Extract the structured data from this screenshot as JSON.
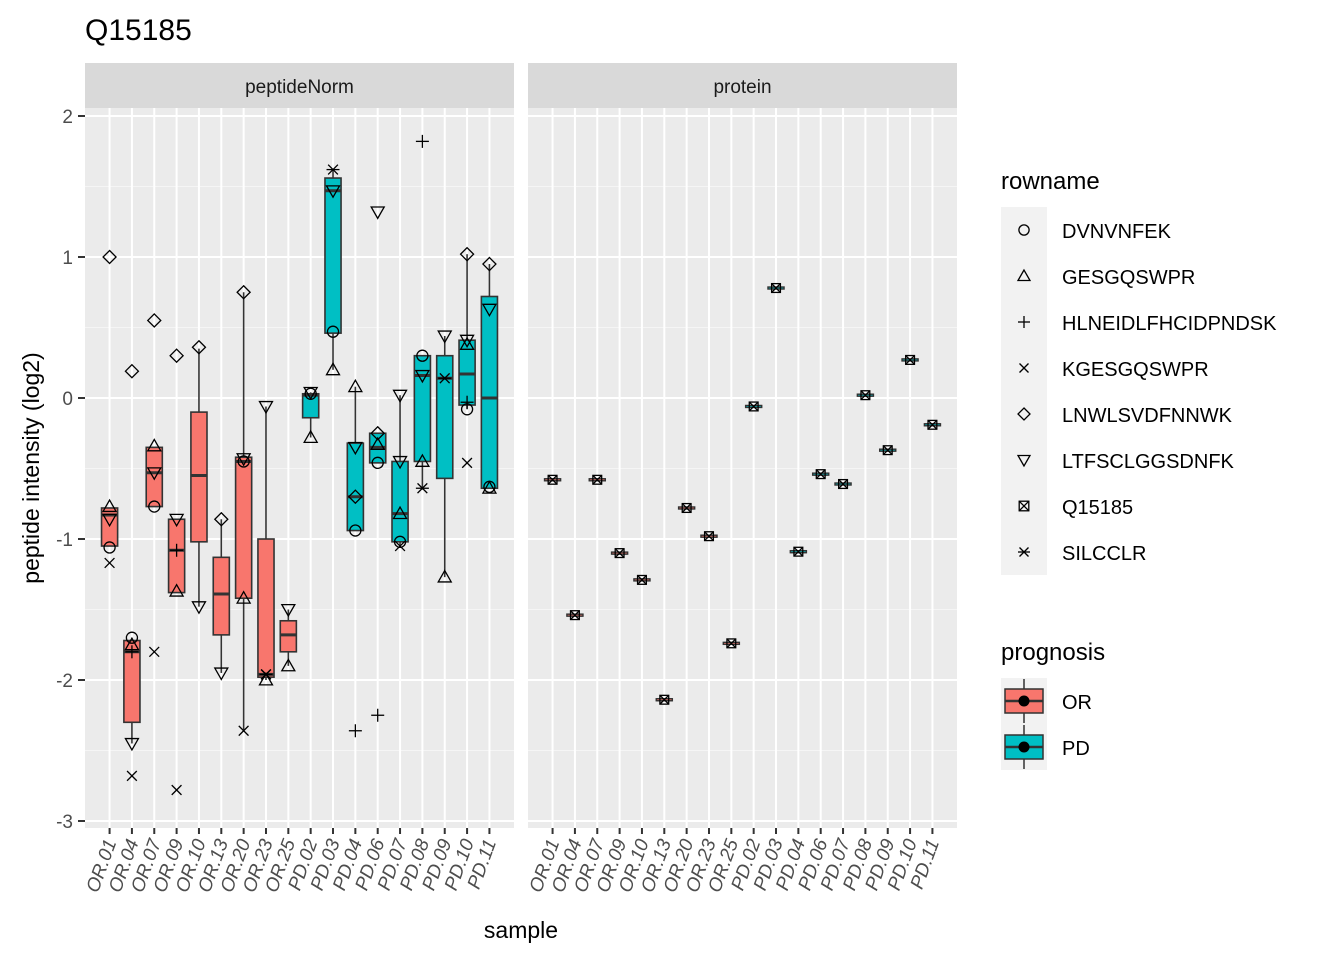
{
  "chart_data": {
    "type": "box",
    "title": "Q15185",
    "xlabel": "sample",
    "ylabel": "peptide intensity (log2)",
    "ylim": [
      -3,
      2
    ],
    "y_ticks": [
      2,
      1,
      0,
      -1,
      -2,
      -3
    ],
    "samples": [
      "OR.01",
      "OR.04",
      "OR.07",
      "OR.09",
      "OR.10",
      "OR.13",
      "OR.20",
      "OR.23",
      "OR.25",
      "PD.02",
      "PD.03",
      "PD.04",
      "PD.06",
      "PD.07",
      "PD.08",
      "PD.09",
      "PD.10",
      "PD.11"
    ],
    "sample_prognosis": [
      "OR",
      "OR",
      "OR",
      "OR",
      "OR",
      "OR",
      "OR",
      "OR",
      "OR",
      "PD",
      "PD",
      "PD",
      "PD",
      "PD",
      "PD",
      "PD",
      "PD",
      "PD"
    ],
    "facets": [
      {
        "label": "peptideNorm",
        "boxes": [
          {
            "q1": -1.05,
            "median": -0.83,
            "q3": -0.78,
            "wlo": -1.05,
            "whi": -0.78
          },
          {
            "q1": -2.3,
            "median": -1.8,
            "q3": -1.72,
            "wlo": -2.45,
            "whi": -1.7
          },
          {
            "q1": -0.77,
            "median": -0.53,
            "q3": -0.35,
            "wlo": -0.77,
            "whi": -0.35
          },
          {
            "q1": -1.38,
            "median": -1.08,
            "q3": -0.86,
            "wlo": -1.38,
            "whi": -0.86
          },
          {
            "q1": -1.02,
            "median": -0.55,
            "q3": -0.1,
            "wlo": -1.48,
            "whi": 0.35
          },
          {
            "q1": -1.68,
            "median": -1.39,
            "q3": -1.13,
            "wlo": -1.95,
            "whi": -0.86
          },
          {
            "q1": -1.42,
            "median": -0.45,
            "q3": -0.42,
            "wlo": -2.36,
            "whi": 0.75
          },
          {
            "q1": -1.98,
            "median": -1.96,
            "q3": -1.0,
            "wlo": -2.0,
            "whi": -0.06
          },
          {
            "q1": -1.8,
            "median": -1.68,
            "q3": -1.58,
            "wlo": -1.9,
            "whi": -1.5
          },
          {
            "q1": -0.14,
            "median": 0.02,
            "q3": 0.03,
            "wlo": -0.28,
            "whi": 0.04
          },
          {
            "q1": 0.46,
            "median": 1.47,
            "q3": 1.56,
            "wlo": 0.2,
            "whi": 1.62
          },
          {
            "q1": -0.94,
            "median": -0.7,
            "q3": -0.32,
            "wlo": -0.94,
            "whi": 0.08
          },
          {
            "q1": -0.46,
            "median": -0.35,
            "q3": -0.25,
            "wlo": -0.46,
            "whi": -0.25
          },
          {
            "q1": -1.02,
            "median": -0.82,
            "q3": -0.45,
            "wlo": -1.05,
            "whi": 0.02
          },
          {
            "q1": -0.45,
            "median": 0.16,
            "q3": 0.3,
            "wlo": -0.65,
            "whi": 0.3
          },
          {
            "q1": -0.57,
            "median": 0.14,
            "q3": 0.3,
            "wlo": -1.27,
            "whi": 0.44
          },
          {
            "q1": -0.05,
            "median": 0.17,
            "q3": 0.41,
            "wlo": -0.08,
            "whi": 1.02
          },
          {
            "q1": -0.64,
            "median": 0.0,
            "q3": 0.72,
            "wlo": -0.64,
            "whi": 0.95
          }
        ],
        "points": [
          {
            "sample": "OR.01",
            "rowname": "DVNVNFEK",
            "y": -1.06
          },
          {
            "sample": "OR.01",
            "rowname": "GESGQSWPR",
            "y": -0.77
          },
          {
            "sample": "OR.01",
            "rowname": "KGESGQSWPR",
            "y": -1.17
          },
          {
            "sample": "OR.01",
            "rowname": "LNWLSVDFNNWK",
            "y": 1.0
          },
          {
            "sample": "OR.01",
            "rowname": "LTFSCLGGSDNFK",
            "y": -0.86
          },
          {
            "sample": "OR.04",
            "rowname": "DVNVNFEK",
            "y": -1.7
          },
          {
            "sample": "OR.04",
            "rowname": "GESGQSWPR",
            "y": -1.75
          },
          {
            "sample": "OR.04",
            "rowname": "HLNEIDLFHCIDPNDSK",
            "y": -1.8
          },
          {
            "sample": "OR.04",
            "rowname": "KGESGQSWPR",
            "y": -2.68
          },
          {
            "sample": "OR.04",
            "rowname": "LNWLSVDFNNWK",
            "y": 0.19
          },
          {
            "sample": "OR.04",
            "rowname": "LTFSCLGGSDNFK",
            "y": -2.45
          },
          {
            "sample": "OR.07",
            "rowname": "DVNVNFEK",
            "y": -0.77
          },
          {
            "sample": "OR.07",
            "rowname": "GESGQSWPR",
            "y": -0.34
          },
          {
            "sample": "OR.07",
            "rowname": "KGESGQSWPR",
            "y": -1.8
          },
          {
            "sample": "OR.07",
            "rowname": "LNWLSVDFNNWK",
            "y": 0.55
          },
          {
            "sample": "OR.07",
            "rowname": "LTFSCLGGSDNFK",
            "y": -0.53
          },
          {
            "sample": "OR.09",
            "rowname": "GESGQSWPR",
            "y": -1.37
          },
          {
            "sample": "OR.09",
            "rowname": "HLNEIDLFHCIDPNDSK",
            "y": -1.08
          },
          {
            "sample": "OR.09",
            "rowname": "KGESGQSWPR",
            "y": -2.78
          },
          {
            "sample": "OR.09",
            "rowname": "LNWLSVDFNNWK",
            "y": 0.3
          },
          {
            "sample": "OR.09",
            "rowname": "LTFSCLGGSDNFK",
            "y": -0.86
          },
          {
            "sample": "OR.10",
            "rowname": "LNWLSVDFNNWK",
            "y": 0.36
          },
          {
            "sample": "OR.10",
            "rowname": "LTFSCLGGSDNFK",
            "y": -1.48
          },
          {
            "sample": "OR.13",
            "rowname": "LNWLSVDFNNWK",
            "y": -0.86
          },
          {
            "sample": "OR.13",
            "rowname": "LTFSCLGGSDNFK",
            "y": -1.95
          },
          {
            "sample": "OR.20",
            "rowname": "DVNVNFEK",
            "y": -0.45
          },
          {
            "sample": "OR.20",
            "rowname": "GESGQSWPR",
            "y": -1.42
          },
          {
            "sample": "OR.20",
            "rowname": "KGESGQSWPR",
            "y": -2.36
          },
          {
            "sample": "OR.20",
            "rowname": "LNWLSVDFNNWK",
            "y": 0.75
          },
          {
            "sample": "OR.20",
            "rowname": "LTFSCLGGSDNFK",
            "y": -0.43
          },
          {
            "sample": "OR.23",
            "rowname": "GESGQSWPR",
            "y": -2.0
          },
          {
            "sample": "OR.23",
            "rowname": "KGESGQSWPR",
            "y": -1.96
          },
          {
            "sample": "OR.23",
            "rowname": "SILCCLR",
            "y": -1.96
          },
          {
            "sample": "OR.23",
            "rowname": "LTFSCLGGSDNFK",
            "y": -0.06
          },
          {
            "sample": "OR.25",
            "rowname": "GESGQSWPR",
            "y": -1.9
          },
          {
            "sample": "OR.25",
            "rowname": "LTFSCLGGSDNFK",
            "y": -1.5
          },
          {
            "sample": "PD.02",
            "rowname": "DVNVNFEK",
            "y": 0.03
          },
          {
            "sample": "PD.02",
            "rowname": "GESGQSWPR",
            "y": -0.28
          },
          {
            "sample": "PD.02",
            "rowname": "LTFSCLGGSDNFK",
            "y": 0.04
          },
          {
            "sample": "PD.03",
            "rowname": "DVNVNFEK",
            "y": 0.47
          },
          {
            "sample": "PD.03",
            "rowname": "GESGQSWPR",
            "y": 0.2
          },
          {
            "sample": "PD.03",
            "rowname": "SILCCLR",
            "y": 1.62
          },
          {
            "sample": "PD.03",
            "rowname": "LTFSCLGGSDNFK",
            "y": 1.47
          },
          {
            "sample": "PD.04",
            "rowname": "DVNVNFEK",
            "y": -0.94
          },
          {
            "sample": "PD.04",
            "rowname": "GESGQSWPR",
            "y": 0.08
          },
          {
            "sample": "PD.04",
            "rowname": "HLNEIDLFHCIDPNDSK",
            "y": -2.36
          },
          {
            "sample": "PD.04",
            "rowname": "LNWLSVDFNNWK",
            "y": -0.7
          },
          {
            "sample": "PD.04",
            "rowname": "LTFSCLGGSDNFK",
            "y": -0.35
          },
          {
            "sample": "PD.06",
            "rowname": "DVNVNFEK",
            "y": -0.46
          },
          {
            "sample": "PD.06",
            "rowname": "GESGQSWPR",
            "y": -0.33
          },
          {
            "sample": "PD.06",
            "rowname": "HLNEIDLFHCIDPNDSK",
            "y": -2.25
          },
          {
            "sample": "PD.06",
            "rowname": "LNWLSVDFNNWK",
            "y": -0.25
          },
          {
            "sample": "PD.06",
            "rowname": "LTFSCLGGSDNFK",
            "y": 1.32
          },
          {
            "sample": "PD.07",
            "rowname": "DVNVNFEK",
            "y": -1.02
          },
          {
            "sample": "PD.07",
            "rowname": "GESGQSWPR",
            "y": -0.82
          },
          {
            "sample": "PD.07",
            "rowname": "KGESGQSWPR",
            "y": -1.05
          },
          {
            "sample": "PD.07",
            "rowname": "LTFSCLGGSDNFK",
            "y": 0.02
          },
          {
            "sample": "PD.07",
            "rowname": "LTFSCLGGSDNFK",
            "y": -0.45
          },
          {
            "sample": "PD.08",
            "rowname": "DVNVNFEK",
            "y": 0.3
          },
          {
            "sample": "PD.08",
            "rowname": "GESGQSWPR",
            "y": -0.45
          },
          {
            "sample": "PD.08",
            "rowname": "HLNEIDLFHCIDPNDSK",
            "y": 1.82
          },
          {
            "sample": "PD.08",
            "rowname": "SILCCLR",
            "y": -0.64
          },
          {
            "sample": "PD.08",
            "rowname": "LTFSCLGGSDNFK",
            "y": 0.16
          },
          {
            "sample": "PD.09",
            "rowname": "GESGQSWPR",
            "y": -1.27
          },
          {
            "sample": "PD.09",
            "rowname": "SILCCLR",
            "y": 0.14
          },
          {
            "sample": "PD.09",
            "rowname": "LTFSCLGGSDNFK",
            "y": 0.44
          },
          {
            "sample": "PD.10",
            "rowname": "DVNVNFEK",
            "y": -0.08
          },
          {
            "sample": "PD.10",
            "rowname": "GESGQSWPR",
            "y": 0.38
          },
          {
            "sample": "PD.10",
            "rowname": "HLNEIDLFHCIDPNDSK",
            "y": -0.03
          },
          {
            "sample": "PD.10",
            "rowname": "KGESGQSWPR",
            "y": -0.46
          },
          {
            "sample": "PD.10",
            "rowname": "LNWLSVDFNNWK",
            "y": 1.02
          },
          {
            "sample": "PD.10",
            "rowname": "LTFSCLGGSDNFK",
            "y": 0.41
          },
          {
            "sample": "PD.11",
            "rowname": "DVNVNFEK",
            "y": -0.63
          },
          {
            "sample": "PD.11",
            "rowname": "GESGQSWPR",
            "y": -0.64
          },
          {
            "sample": "PD.11",
            "rowname": "LNWLSVDFNNWK",
            "y": 0.95
          },
          {
            "sample": "PD.11",
            "rowname": "LTFSCLGGSDNFK",
            "y": 0.63
          }
        ]
      },
      {
        "label": "protein",
        "rowname": "Q15185",
        "values": [
          -0.58,
          -1.54,
          -0.58,
          -1.1,
          -1.29,
          -2.14,
          -0.78,
          -0.98,
          -1.74,
          -0.06,
          0.78,
          -1.09,
          -0.54,
          -0.61,
          0.02,
          -0.37,
          0.27,
          -0.19
        ]
      }
    ],
    "legend_rowname": {
      "title": "rowname",
      "entries": [
        {
          "label": "DVNVNFEK",
          "shape": "circle"
        },
        {
          "label": "GESGQSWPR",
          "shape": "triangle-up"
        },
        {
          "label": "HLNEIDLFHCIDPNDSK",
          "shape": "plus"
        },
        {
          "label": "KGESGQSWPR",
          "shape": "cross"
        },
        {
          "label": "LNWLSVDFNNWK",
          "shape": "diamond"
        },
        {
          "label": "LTFSCLGGSDNFK",
          "shape": "triangle-down"
        },
        {
          "label": "Q15185",
          "shape": "square-cross"
        },
        {
          "label": "SILCCLR",
          "shape": "asterisk"
        }
      ]
    },
    "legend_prognosis": {
      "title": "prognosis",
      "entries": [
        {
          "label": "OR",
          "color": "#F8766D"
        },
        {
          "label": "PD",
          "color": "#00BFC4"
        }
      ]
    },
    "grid": true,
    "legend_position": "right"
  }
}
